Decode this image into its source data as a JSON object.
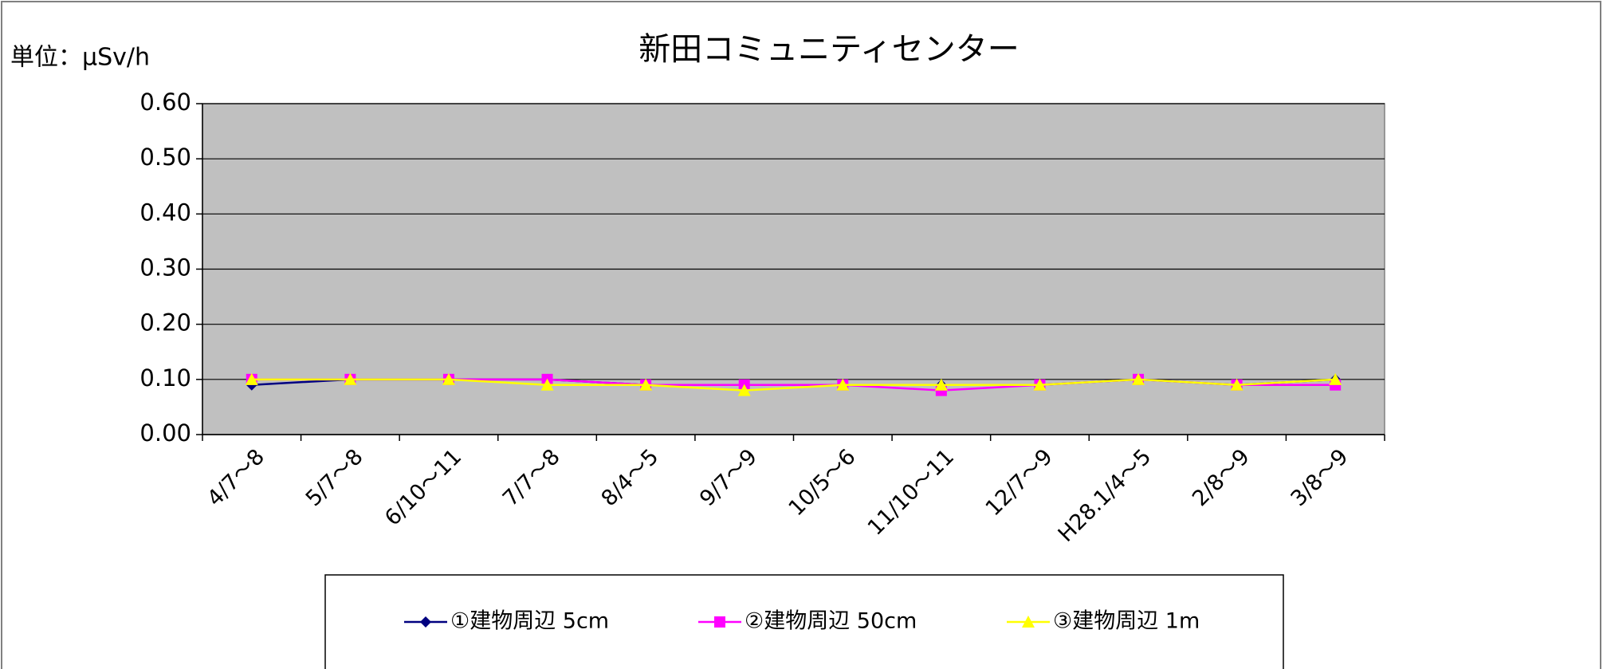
{
  "chart_data": {
    "type": "line",
    "title": "新田コミュニティセンター",
    "y_label": "単位：μSv/h",
    "categories": [
      "4/7～8",
      "5/7～8",
      "6/10～11",
      "7/7～8",
      "8/4～5",
      "9/7～9",
      "10/5～6",
      "11/10～11",
      "12/7～9",
      "H28.1/4～5",
      "2/8～9",
      "3/8～9"
    ],
    "series": [
      {
        "name": "①建物周辺 5cm",
        "color": "#000080",
        "marker": "diamond",
        "values": [
          0.09,
          0.1,
          0.1,
          0.1,
          0.09,
          0.09,
          0.09,
          0.09,
          0.09,
          0.1,
          0.09,
          0.1
        ]
      },
      {
        "name": "②建物周辺 50cm",
        "color": "#ff00ff",
        "marker": "square",
        "values": [
          0.1,
          0.1,
          0.1,
          0.1,
          0.09,
          0.09,
          0.09,
          0.08,
          0.09,
          0.1,
          0.09,
          0.09
        ]
      },
      {
        "name": "③建物周辺 1m",
        "color": "#ffff00",
        "marker": "triangle",
        "values": [
          0.1,
          0.1,
          0.1,
          0.09,
          0.09,
          0.08,
          0.09,
          0.09,
          0.09,
          0.1,
          0.09,
          0.1
        ]
      }
    ],
    "ylim": [
      0,
      0.6
    ],
    "yticks": [
      {
        "value": 0,
        "label": "0.00"
      },
      {
        "value": 0.1,
        "label": "0.10"
      },
      {
        "value": 0.2,
        "label": "0.20"
      },
      {
        "value": 0.3,
        "label": "0.30"
      },
      {
        "value": 0.4,
        "label": "0.40"
      },
      {
        "value": 0.5,
        "label": "0.50"
      },
      {
        "value": 0.6,
        "label": "0.60"
      }
    ],
    "grid": true,
    "legend": "bottom",
    "plot_background": "#c0c0c0"
  }
}
